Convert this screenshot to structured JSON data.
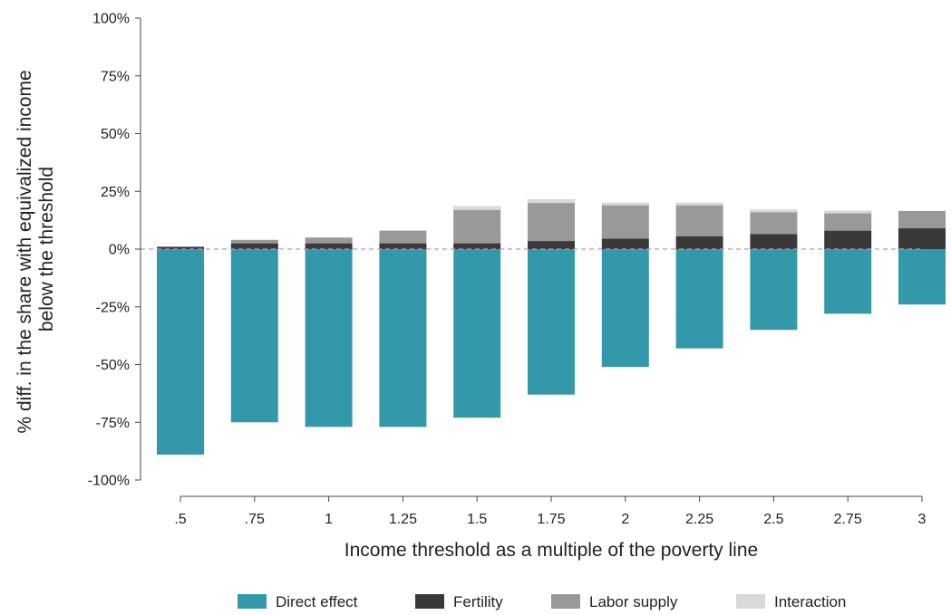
{
  "chart_data": {
    "type": "bar",
    "stacked": true,
    "categories": [
      ".5",
      ".75",
      "1",
      "1.25",
      "1.5",
      "1.75",
      "2",
      "2.25",
      "2.5",
      "2.75",
      "3"
    ],
    "series": [
      {
        "name": "Direct effect",
        "color": "#3399aa",
        "values": [
          -89,
          -75,
          -77,
          -77,
          -73,
          -63,
          -51,
          -43,
          -35,
          -28,
          -24
        ]
      },
      {
        "name": "Fertility",
        "color": "#393939",
        "values": [
          1,
          2.5,
          2.5,
          2.5,
          2.5,
          3.5,
          4.5,
          5.5,
          6.5,
          8,
          9
        ]
      },
      {
        "name": "Labor supply",
        "color": "#999999",
        "values": [
          0,
          1.5,
          2.5,
          5.5,
          14.5,
          16.5,
          14.5,
          13.5,
          9.5,
          7.5,
          7.5
        ]
      },
      {
        "name": "Interaction",
        "color": "#d9d9d9",
        "values": [
          0,
          0,
          0,
          0,
          1.5,
          1.5,
          1,
          1,
          1,
          1,
          0
        ]
      }
    ],
    "xlabel": "Income threshold as a multiple of the poverty line",
    "ylabel_lines": [
      "% diff. in the share with equivalized income",
      "below the threshold"
    ],
    "ylim": [
      -100,
      100
    ],
    "yticks": [
      100,
      75,
      50,
      25,
      0,
      -25,
      -50,
      -75,
      -100
    ],
    "ytick_labels": [
      "100%",
      "75%",
      "50%",
      "25%",
      "0%",
      "-25%",
      "-50%",
      "-75%",
      "-100%"
    ],
    "reference_line": {
      "y": 0,
      "style": "dashed",
      "color": "#d98aa6"
    },
    "grid": false,
    "legend_position": "bottom"
  }
}
